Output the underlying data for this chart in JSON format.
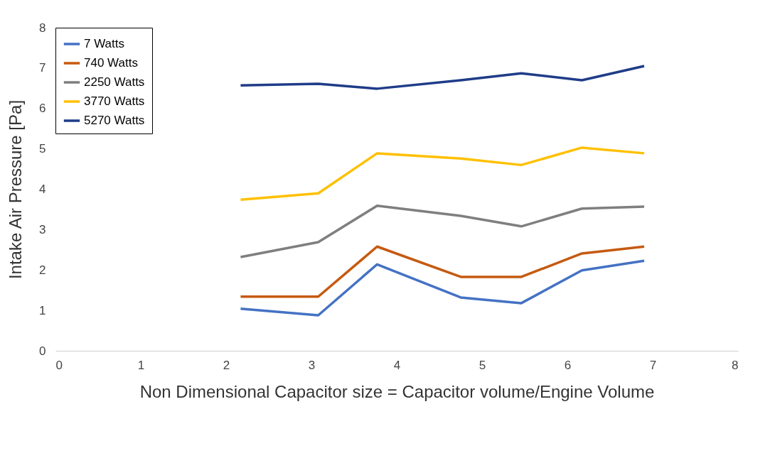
{
  "chart_data": {
    "type": "line",
    "xlabel": "Non Dimensional Capacitor size = Capacitor volume/Engine Volume",
    "ylabel": "Intake Air Pressure [Pa]",
    "x": [
      2.17,
      3.08,
      3.77,
      4.75,
      5.46,
      6.17,
      6.9
    ],
    "xlim": [
      0,
      8
    ],
    "xticks": [
      0,
      1,
      2,
      3,
      4,
      5,
      6,
      7,
      8
    ],
    "ylim": [
      0,
      8
    ],
    "yticks": [
      0,
      1,
      2,
      3,
      4,
      5,
      6,
      7,
      8
    ],
    "legend": "top left",
    "marker": "none",
    "line_style": "solid",
    "series": [
      {
        "name": "7 Watts",
        "color": "#4472c4",
        "values": [
          1.04,
          0.88,
          2.14,
          1.32,
          1.18,
          1.99,
          2.23
        ]
      },
      {
        "name": "740 Watts",
        "color": "#c55a11",
        "values": [
          1.34,
          1.34,
          2.58,
          1.83,
          1.83,
          2.41,
          2.58
        ]
      },
      {
        "name": "2250 Watts",
        "color": "#7f7f7f",
        "values": [
          2.32,
          2.69,
          3.59,
          3.34,
          3.08,
          3.52,
          3.57
        ]
      },
      {
        "name": "3770 Watts",
        "color": "#ffc000",
        "values": [
          3.74,
          3.9,
          4.89,
          4.76,
          4.6,
          5.03,
          4.89
        ]
      },
      {
        "name": "5270 Watts",
        "color": "#1f3c88",
        "values": [
          6.57,
          6.61,
          6.49,
          6.7,
          6.87,
          6.7,
          7.05
        ]
      }
    ]
  }
}
